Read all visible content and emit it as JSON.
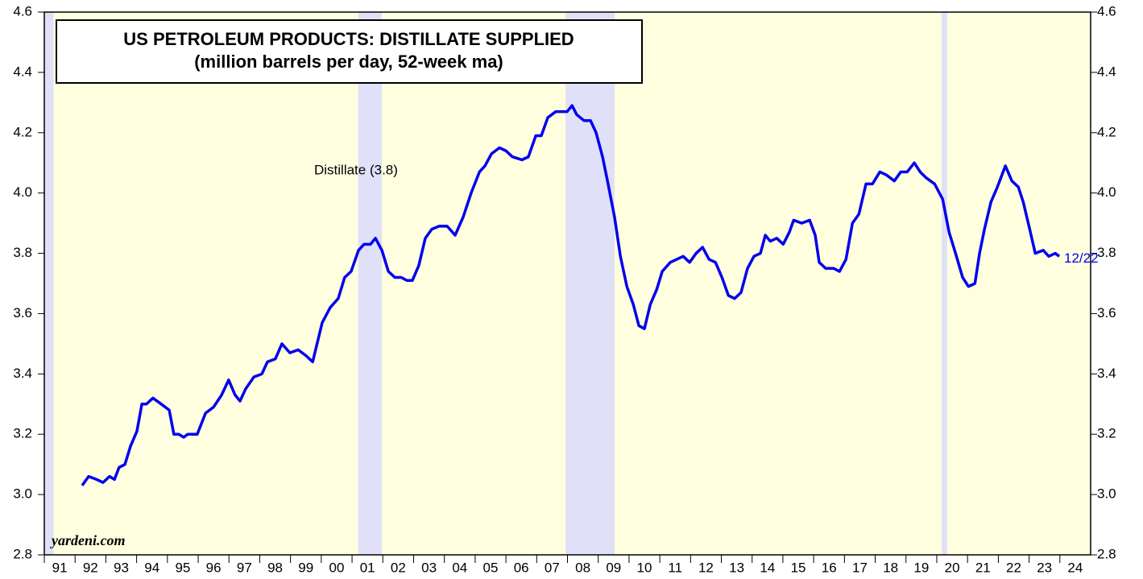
{
  "chart_data": {
    "type": "line",
    "title": "US PETROLEUM PRODUCTS: DISTILLATE SUPPLIED",
    "subtitle": "(million barrels per day, 52-week ma)",
    "annotation": "Distillate (3.8)",
    "end_label": "12/22",
    "source": "yardeni.com",
    "background_color": "#ffffe0",
    "shade_color": "#e0e0f8",
    "shaded_periods": [
      [
        1991,
        1991.3
      ],
      [
        2001.2,
        2001.97
      ],
      [
        2007.94,
        2009.53
      ],
      [
        2020.16,
        2020.34
      ]
    ],
    "xlim": [
      1991,
      2025
    ],
    "ylim": [
      2.8,
      4.6
    ],
    "yticks": [
      {
        "value": 2.8,
        "label": "2.8"
      },
      {
        "value": 3.0,
        "label": "3.0"
      },
      {
        "value": 3.2,
        "label": "3.2"
      },
      {
        "value": 3.4,
        "label": "3.4"
      },
      {
        "value": 3.6,
        "label": "3.6"
      },
      {
        "value": 3.8,
        "label": "3.8"
      },
      {
        "value": 4.0,
        "label": "4.0"
      },
      {
        "value": 4.2,
        "label": "4.2"
      },
      {
        "value": 4.4,
        "label": "4.4"
      },
      {
        "value": 4.6,
        "label": "4.6"
      }
    ],
    "xticks": [
      {
        "value": 1991,
        "label": "91"
      },
      {
        "value": 1992,
        "label": "92"
      },
      {
        "value": 1993,
        "label": "93"
      },
      {
        "value": 1994,
        "label": "94"
      },
      {
        "value": 1995,
        "label": "95"
      },
      {
        "value": 1996,
        "label": "96"
      },
      {
        "value": 1997,
        "label": "97"
      },
      {
        "value": 1998,
        "label": "98"
      },
      {
        "value": 1999,
        "label": "99"
      },
      {
        "value": 2000,
        "label": "00"
      },
      {
        "value": 2001,
        "label": "01"
      },
      {
        "value": 2002,
        "label": "02"
      },
      {
        "value": 2003,
        "label": "03"
      },
      {
        "value": 2004,
        "label": "04"
      },
      {
        "value": 2005,
        "label": "05"
      },
      {
        "value": 2006,
        "label": "06"
      },
      {
        "value": 2007,
        "label": "07"
      },
      {
        "value": 2008,
        "label": "08"
      },
      {
        "value": 2009,
        "label": "09"
      },
      {
        "value": 2010,
        "label": "10"
      },
      {
        "value": 2011,
        "label": "11"
      },
      {
        "value": 2012,
        "label": "12"
      },
      {
        "value": 2013,
        "label": "13"
      },
      {
        "value": 2014,
        "label": "14"
      },
      {
        "value": 2015,
        "label": "15"
      },
      {
        "value": 2016,
        "label": "16"
      },
      {
        "value": 2017,
        "label": "17"
      },
      {
        "value": 2018,
        "label": "18"
      },
      {
        "value": 2019,
        "label": "19"
      },
      {
        "value": 2020,
        "label": "20"
      },
      {
        "value": 2021,
        "label": "21"
      },
      {
        "value": 2022,
        "label": "22"
      },
      {
        "value": 2023,
        "label": "23"
      },
      {
        "value": 2024,
        "label": "24"
      }
    ],
    "series": [
      {
        "color": "#0000ee",
        "x": [
          1992.23,
          1992.44,
          1992.7,
          1992.91,
          1993.12,
          1993.28,
          1993.43,
          1993.62,
          1993.8,
          1994.01,
          1994.17,
          1994.32,
          1994.53,
          1994.8,
          1995.06,
          1995.21,
          1995.37,
          1995.53,
          1995.66,
          1995.97,
          1996.24,
          1996.5,
          1996.76,
          1996.99,
          1997.2,
          1997.36,
          1997.54,
          1997.81,
          1998.07,
          1998.25,
          1998.51,
          1998.72,
          1998.98,
          1999.25,
          1999.51,
          1999.72,
          2000.03,
          2000.29,
          2000.55,
          2000.76,
          2000.97,
          2001.21,
          2001.39,
          2001.6,
          2001.76,
          2001.97,
          2002.18,
          2002.39,
          2002.6,
          2002.78,
          2002.96,
          2003.17,
          2003.38,
          2003.59,
          2003.83,
          2004.09,
          2004.35,
          2004.61,
          2004.87,
          2005.14,
          2005.32,
          2005.53,
          2005.79,
          2006.0,
          2006.21,
          2006.52,
          2006.73,
          2006.97,
          2007.15,
          2007.36,
          2007.62,
          2007.83,
          2007.99,
          2008.15,
          2008.3,
          2008.54,
          2008.75,
          2008.93,
          2009.14,
          2009.32,
          2009.53,
          2009.72,
          2009.93,
          2010.14,
          2010.32,
          2010.5,
          2010.69,
          2010.9,
          2011.08,
          2011.34,
          2011.55,
          2011.76,
          2011.97,
          2012.18,
          2012.39,
          2012.6,
          2012.81,
          2013.02,
          2013.23,
          2013.43,
          2013.64,
          2013.85,
          2014.06,
          2014.27,
          2014.43,
          2014.59,
          2014.8,
          2015.01,
          2015.21,
          2015.35,
          2015.61,
          2015.87,
          2016.05,
          2016.18,
          2016.39,
          2016.65,
          2016.84,
          2017.05,
          2017.26,
          2017.47,
          2017.7,
          2017.91,
          2018.15,
          2018.36,
          2018.62,
          2018.83,
          2019.04,
          2019.27,
          2019.46,
          2019.66,
          2019.93,
          2020.19,
          2020.4,
          2020.61,
          2020.84,
          2021.03,
          2021.24,
          2021.39,
          2021.55,
          2021.76,
          2021.97,
          2022.23,
          2022.44,
          2022.65,
          2022.81,
          2023.02,
          2023.2,
          2023.46,
          2023.64,
          2023.85,
          2023.98
        ],
        "values": [
          3.03,
          3.06,
          3.05,
          3.04,
          3.06,
          3.05,
          3.09,
          3.1,
          3.16,
          3.21,
          3.3,
          3.3,
          3.32,
          3.3,
          3.28,
          3.2,
          3.2,
          3.19,
          3.2,
          3.2,
          3.27,
          3.29,
          3.33,
          3.38,
          3.33,
          3.31,
          3.35,
          3.39,
          3.4,
          3.44,
          3.45,
          3.5,
          3.47,
          3.48,
          3.46,
          3.44,
          3.57,
          3.62,
          3.65,
          3.72,
          3.74,
          3.81,
          3.83,
          3.83,
          3.85,
          3.81,
          3.74,
          3.72,
          3.72,
          3.71,
          3.71,
          3.76,
          3.85,
          3.88,
          3.89,
          3.89,
          3.86,
          3.92,
          4.0,
          4.07,
          4.09,
          4.13,
          4.15,
          4.14,
          4.12,
          4.11,
          4.12,
          4.19,
          4.19,
          4.25,
          4.27,
          4.27,
          4.27,
          4.29,
          4.26,
          4.24,
          4.24,
          4.2,
          4.12,
          4.03,
          3.92,
          3.79,
          3.69,
          3.63,
          3.56,
          3.55,
          3.63,
          3.68,
          3.74,
          3.77,
          3.78,
          3.79,
          3.77,
          3.8,
          3.82,
          3.78,
          3.77,
          3.72,
          3.66,
          3.65,
          3.67,
          3.75,
          3.79,
          3.8,
          3.86,
          3.84,
          3.85,
          3.83,
          3.87,
          3.91,
          3.9,
          3.91,
          3.86,
          3.77,
          3.75,
          3.75,
          3.74,
          3.78,
          3.9,
          3.93,
          4.03,
          4.03,
          4.07,
          4.06,
          4.04,
          4.07,
          4.07,
          4.1,
          4.07,
          4.05,
          4.03,
          3.98,
          3.87,
          3.8,
          3.72,
          3.69,
          3.7,
          3.8,
          3.88,
          3.97,
          4.02,
          4.09,
          4.04,
          4.02,
          3.97,
          3.88,
          3.8,
          3.81,
          3.79,
          3.8,
          3.79
        ]
      }
    ]
  }
}
